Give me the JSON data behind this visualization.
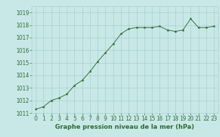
{
  "x": [
    0,
    1,
    2,
    3,
    4,
    5,
    6,
    7,
    8,
    9,
    10,
    11,
    12,
    13,
    14,
    15,
    16,
    17,
    18,
    19,
    20,
    21,
    22,
    23
  ],
  "y": [
    1011.3,
    1011.5,
    1012.0,
    1012.2,
    1012.5,
    1013.2,
    1013.6,
    1014.3,
    1015.1,
    1015.8,
    1016.5,
    1017.3,
    1017.7,
    1017.8,
    1017.8,
    1017.8,
    1017.9,
    1017.6,
    1017.5,
    1017.6,
    1018.5,
    1017.8,
    1017.8,
    1017.9
  ],
  "line_color": "#2d6a2d",
  "marker": "*",
  "marker_size": 2.5,
  "bg_color": "#c8e8e8",
  "grid_color": "#aacccc",
  "xlabel": "Graphe pression niveau de la mer (hPa)",
  "xlabel_color": "#2d6a2d",
  "xlabel_fontsize": 6.5,
  "tick_color": "#2d6a2d",
  "tick_fontsize": 5.5,
  "ylim": [
    1011,
    1019.5
  ],
  "yticks": [
    1011,
    1012,
    1013,
    1014,
    1015,
    1016,
    1017,
    1018,
    1019
  ],
  "xlim": [
    -0.5,
    23.5
  ],
  "xticks": [
    0,
    1,
    2,
    3,
    4,
    5,
    6,
    7,
    8,
    9,
    10,
    11,
    12,
    13,
    14,
    15,
    16,
    17,
    18,
    19,
    20,
    21,
    22,
    23
  ]
}
